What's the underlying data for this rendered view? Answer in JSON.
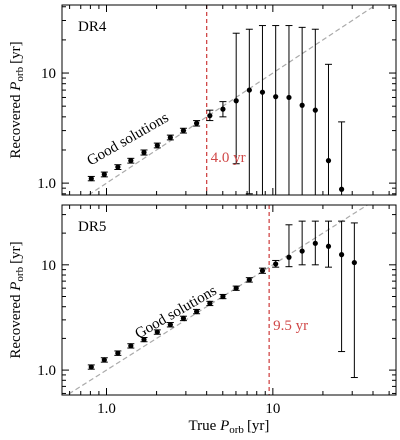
{
  "chart_data": [
    {
      "type": "errorbar",
      "panel_label": "DR4",
      "annotation": "Good solutions",
      "threshold": 4.0,
      "threshold_label": "4.0 yr",
      "threshold_color": "#d04848",
      "xscale": "log",
      "yscale": "log",
      "xlim": [
        0.54,
        55
      ],
      "ylim": [
        0.78,
        41.5
      ],
      "xticks": [
        {
          "value": 1,
          "label": "1.0"
        },
        10
      ],
      "yticks": [
        {
          "value": 1,
          "label": "1.0"
        },
        10
      ],
      "xticks_minor": [
        0.6,
        0.7,
        0.8,
        0.9,
        2,
        3,
        4,
        5,
        6,
        7,
        8,
        9,
        20,
        30,
        40,
        50
      ],
      "yticks_minor": [
        0.8,
        0.9,
        2,
        3,
        4,
        5,
        6,
        7,
        8,
        9,
        20,
        30,
        40
      ],
      "ylabel": {
        "prefix": "Recovered",
        "symbol": "P",
        "subscript": "orb",
        "unit": "[yr]"
      },
      "color": "#000000",
      "x": [
        0.81,
        0.97,
        1.17,
        1.4,
        1.68,
        2.02,
        2.42,
        2.9,
        3.48,
        4.18,
        5.01,
        6.02,
        7.22,
        8.66,
        10.4,
        12.5,
        15.0,
        18.0,
        21.6,
        25.9
      ],
      "values": [
        1.1,
        1.2,
        1.4,
        1.6,
        1.9,
        2.2,
        2.6,
        3.0,
        3.5,
        4.1,
        4.7,
        5.6,
        7.0,
        6.7,
        6.1,
        6.0,
        5.1,
        4.6,
        1.6,
        0.88
      ],
      "lower": [
        1.05,
        1.14,
        1.33,
        1.52,
        1.8,
        2.09,
        2.47,
        2.85,
        3.3,
        3.7,
        4.0,
        1.5,
        0.8,
        0.7,
        0.6,
        0.6,
        0.6,
        0.6,
        0.6,
        0.6
      ],
      "upper": [
        1.15,
        1.26,
        1.47,
        1.68,
        2.0,
        2.31,
        2.73,
        3.15,
        3.7,
        4.6,
        5.5,
        23,
        25,
        27,
        27,
        27,
        26,
        25,
        12,
        3.6
      ]
    },
    {
      "type": "errorbar",
      "panel_label": "DR5",
      "annotation": "Good solutions",
      "threshold": 9.5,
      "threshold_label": "9.5 yr",
      "threshold_color": "#d04848",
      "xscale": "log",
      "yscale": "log",
      "xlim": [
        0.54,
        55
      ],
      "ylim": [
        0.58,
        37
      ],
      "xticks": [
        {
          "value": 1,
          "label": "1.0"
        },
        10
      ],
      "yticks": [
        {
          "value": 1,
          "label": "1.0"
        },
        10
      ],
      "xticks_minor": [
        0.6,
        0.7,
        0.8,
        0.9,
        2,
        3,
        4,
        5,
        6,
        7,
        8,
        9,
        20,
        30,
        40,
        50
      ],
      "yticks_minor": [
        0.6,
        0.7,
        0.8,
        0.9,
        2,
        3,
        4,
        5,
        6,
        7,
        8,
        9,
        20,
        30
      ],
      "ylabel": {
        "prefix": "Recovered",
        "symbol": "P",
        "subscript": "orb",
        "unit": "[yr]"
      },
      "xlabel": {
        "prefix": "True",
        "symbol": "P",
        "subscript": "orb",
        "unit": "[yr]"
      },
      "color": "#000000",
      "x": [
        0.81,
        0.97,
        1.17,
        1.4,
        1.68,
        2.02,
        2.42,
        2.9,
        3.48,
        4.18,
        5.01,
        6.02,
        7.22,
        8.66,
        10.4,
        12.5,
        15.0,
        18.0,
        21.6,
        25.9,
        30.9
      ],
      "values": [
        1.07,
        1.25,
        1.45,
        1.7,
        1.95,
        2.3,
        2.7,
        3.1,
        3.6,
        4.3,
        5.0,
        6.0,
        7.2,
        8.8,
        10.2,
        11.8,
        13.5,
        16,
        15,
        12.5,
        10.5
      ],
      "lower": [
        1.02,
        1.19,
        1.38,
        1.62,
        1.86,
        2.19,
        2.57,
        2.95,
        3.43,
        4.1,
        4.77,
        5.72,
        6.85,
        8.3,
        9.5,
        9.6,
        10,
        10,
        9.5,
        1.5,
        0.85
      ],
      "upper": [
        1.12,
        1.31,
        1.52,
        1.78,
        2.04,
        2.41,
        2.83,
        3.25,
        3.77,
        4.5,
        5.23,
        6.28,
        7.55,
        9.3,
        11,
        24,
        26,
        26,
        26,
        26,
        25
      ]
    }
  ]
}
